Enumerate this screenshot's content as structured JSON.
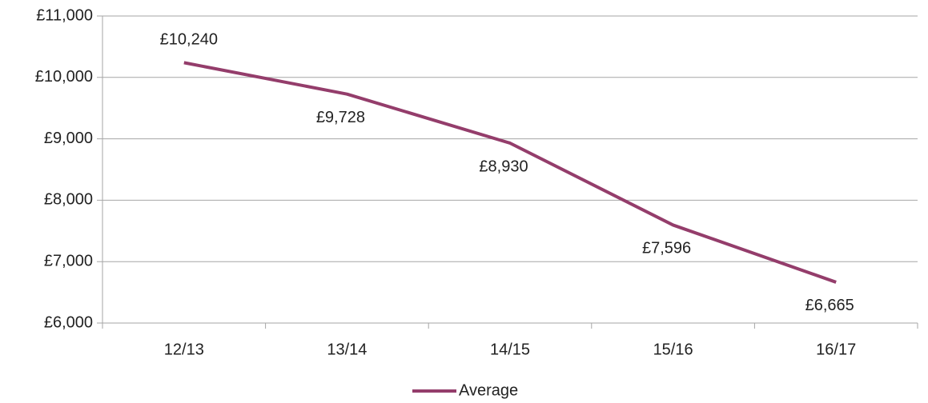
{
  "chart_data": {
    "type": "line",
    "categories": [
      "12/13",
      "13/14",
      "14/15",
      "15/16",
      "16/17"
    ],
    "series": [
      {
        "name": "Average",
        "color": "#943d6b",
        "values": [
          10240,
          9728,
          8930,
          7596,
          6665
        ],
        "value_labels": [
          "£10,240",
          "£9,728",
          "£8,930",
          "£7,596",
          "£6,665"
        ]
      }
    ],
    "ylim": [
      6000,
      11000
    ],
    "yticks": [
      {
        "value": 6000,
        "label": "£6,000"
      },
      {
        "value": 7000,
        "label": "£7,000"
      },
      {
        "value": 8000,
        "label": "£8,000"
      },
      {
        "value": 9000,
        "label": "£9,000"
      },
      {
        "value": 10000,
        "label": "£10,000"
      },
      {
        "value": 11000,
        "label": "£11,000"
      }
    ],
    "grid": true,
    "legend": "bottom"
  }
}
